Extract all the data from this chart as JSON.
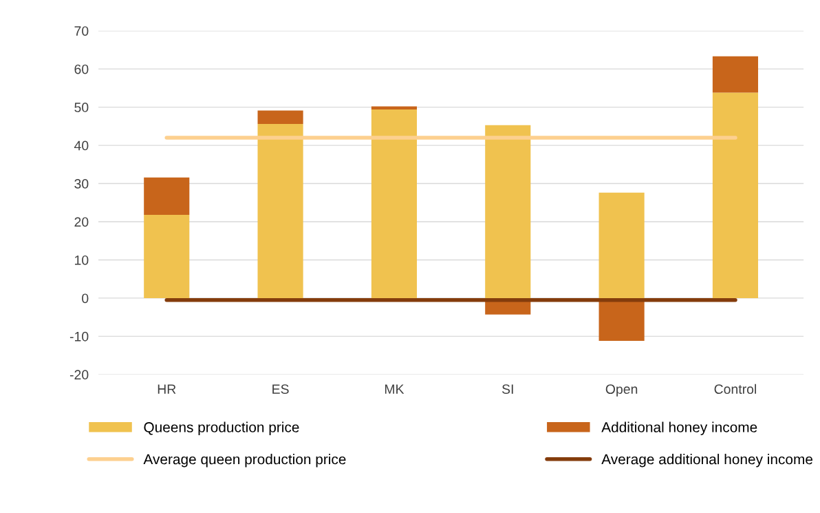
{
  "chart_data": {
    "type": "bar",
    "stacked": true,
    "categories": [
      "HR",
      "ES",
      "MK",
      "SI",
      "Open",
      "Control"
    ],
    "series": [
      {
        "name": "Queens production price",
        "color": "#f0c24f",
        "values": [
          21.8,
          45.6,
          49.4,
          45.3,
          27.6,
          53.8
        ]
      },
      {
        "name": "Additional honey income",
        "color": "#c8651b",
        "values": [
          9.8,
          3.5,
          0.8,
          -4.3,
          -11.2,
          9.5
        ]
      },
      {
        "name": "Average queen production price",
        "type": "line",
        "color": "#fdd08f",
        "values": [
          42.0,
          42.0,
          42.0,
          42.0,
          42.0,
          42.0
        ]
      },
      {
        "name": "Average additional honey income",
        "type": "line",
        "color": "#843c0c",
        "values": [
          -0.5,
          -0.5,
          -0.5,
          -0.5,
          -0.5,
          -0.5
        ]
      }
    ],
    "ylim": [
      -20,
      70
    ],
    "yticks": [
      -20,
      -10,
      0,
      10,
      20,
      30,
      40,
      50,
      60,
      70
    ],
    "grid": "y",
    "legend": "bottom",
    "marker": "none",
    "line_style": "solid"
  }
}
